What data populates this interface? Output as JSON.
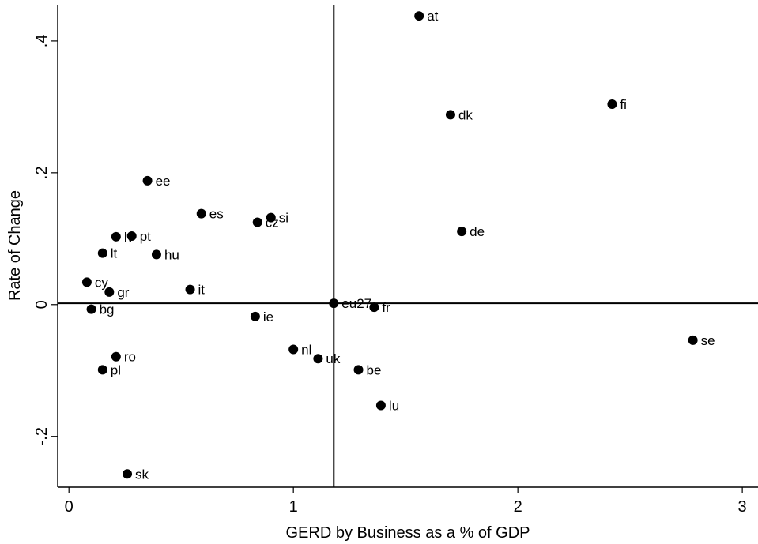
{
  "chart_data": {
    "type": "scatter",
    "xlabel": "GERD by Business as a % of GDP",
    "ylabel": "Rate of Change",
    "xlim": [
      -0.05,
      3.07
    ],
    "ylim": [
      -0.277,
      0.455
    ],
    "xticks": [
      0,
      1,
      2,
      3
    ],
    "xtick_labels": [
      "0",
      "1",
      "2",
      "3"
    ],
    "yticks": [
      -0.2,
      0,
      0.2,
      0.4
    ],
    "ytick_labels": [
      "-.2",
      "0",
      ".2",
      ".4"
    ],
    "grid": false,
    "reference_lines": {
      "x": 1.18,
      "y": 0.002
    },
    "point_color": "#000000",
    "points": [
      {
        "label": "at",
        "x": 1.56,
        "y": 0.438
      },
      {
        "label": "fi",
        "x": 2.42,
        "y": 0.304
      },
      {
        "label": "dk",
        "x": 1.7,
        "y": 0.288
      },
      {
        "label": "ee",
        "x": 0.35,
        "y": 0.188
      },
      {
        "label": "es",
        "x": 0.59,
        "y": 0.138
      },
      {
        "label": "si",
        "x": 0.9,
        "y": 0.132
      },
      {
        "label": "cz",
        "x": 0.84,
        "y": 0.125
      },
      {
        "label": "de",
        "x": 1.75,
        "y": 0.111
      },
      {
        "label": "lv",
        "x": 0.21,
        "y": 0.103
      },
      {
        "label": "pt",
        "x": 0.28,
        "y": 0.104
      },
      {
        "label": "lt",
        "x": 0.15,
        "y": 0.078
      },
      {
        "label": "hu",
        "x": 0.39,
        "y": 0.076
      },
      {
        "label": "cy",
        "x": 0.08,
        "y": 0.034
      },
      {
        "label": "it",
        "x": 0.54,
        "y": 0.023
      },
      {
        "label": "gr",
        "x": 0.18,
        "y": 0.019
      },
      {
        "label": "eu27",
        "x": 1.18,
        "y": 0.002
      },
      {
        "label": "fr",
        "x": 1.36,
        "y": -0.004
      },
      {
        "label": "bg",
        "x": 0.1,
        "y": -0.007
      },
      {
        "label": "ie",
        "x": 0.83,
        "y": -0.018
      },
      {
        "label": "se",
        "x": 2.78,
        "y": -0.054
      },
      {
        "label": "nl",
        "x": 1.0,
        "y": -0.068
      },
      {
        "label": "uk",
        "x": 1.11,
        "y": -0.082
      },
      {
        "label": "ro",
        "x": 0.21,
        "y": -0.079
      },
      {
        "label": "pl",
        "x": 0.15,
        "y": -0.099
      },
      {
        "label": "be",
        "x": 1.29,
        "y": -0.099
      },
      {
        "label": "lu",
        "x": 1.39,
        "y": -0.153
      },
      {
        "label": "sk",
        "x": 0.26,
        "y": -0.257
      }
    ]
  }
}
